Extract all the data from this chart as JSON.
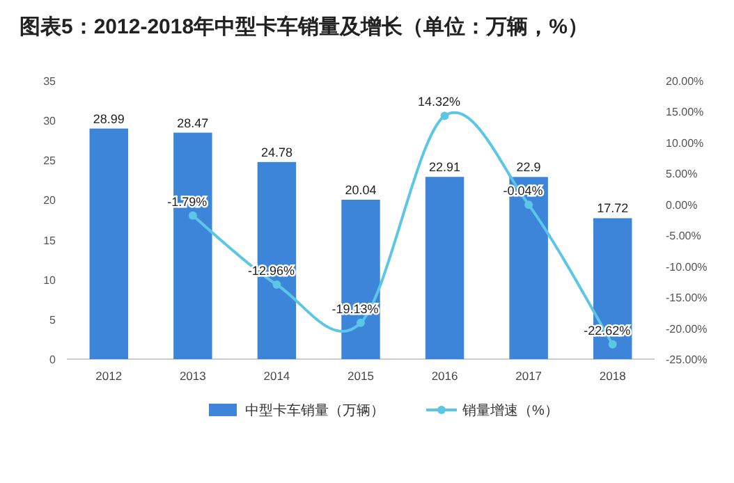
{
  "chart_data": {
    "type": "bar",
    "title": "图表5：2012-2018年中型卡车销量及增长（单位：万辆，%）",
    "categories": [
      "2012",
      "2013",
      "2014",
      "2015",
      "2016",
      "2017",
      "2018"
    ],
    "series": [
      {
        "name": "中型卡车销量（万辆）",
        "color": "#3d85d8",
        "values": [
          28.99,
          28.47,
          24.78,
          20.04,
          22.91,
          22.9,
          17.72
        ],
        "value_labels": [
          "28.99",
          "28.47",
          "24.78",
          "20.04",
          "22.91",
          "22.9",
          "17.72"
        ]
      },
      {
        "type": "line",
        "name": "销量增速（%）",
        "color": "#5bc6e6",
        "axis": "y2",
        "marker": "circle",
        "values": [
          null,
          -1.79,
          -12.96,
          -19.13,
          14.32,
          -0.04,
          -22.62
        ],
        "value_labels": [
          null,
          "-1.79%",
          "-12.96%",
          "-19.13%",
          "14.32%",
          "-0.04%",
          "-22.62%"
        ]
      }
    ],
    "ylim": [
      0,
      35
    ],
    "yticks": [
      0,
      5,
      10,
      15,
      20,
      25,
      30,
      35
    ],
    "y2lim": [
      -25,
      20
    ],
    "y2ticks": [
      {
        "value": -25,
        "label": "-25.00%"
      },
      {
        "value": -20,
        "label": "-20.00%"
      },
      {
        "value": -15,
        "label": "-15.00%"
      },
      {
        "value": -10,
        "label": "-10.00%"
      },
      {
        "value": -5,
        "label": "-5.00%"
      },
      {
        "value": 0,
        "label": "0.00%"
      },
      {
        "value": 5,
        "label": "5.00%"
      },
      {
        "value": 10,
        "label": "10.00%"
      },
      {
        "value": 15,
        "label": "15.00%"
      },
      {
        "value": 20,
        "label": "20.00%"
      }
    ],
    "legend": "bottom"
  }
}
